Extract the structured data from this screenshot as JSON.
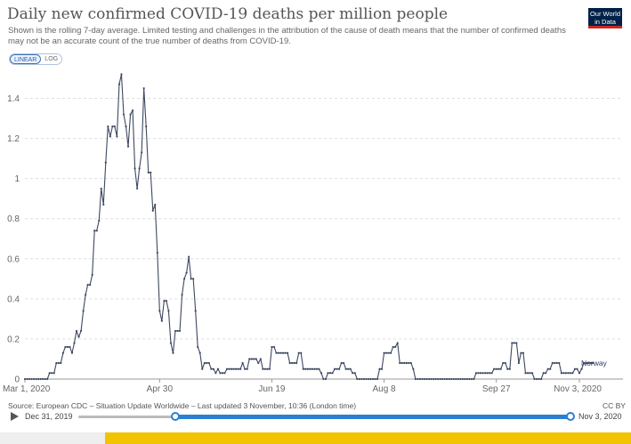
{
  "header": {
    "title": "Daily new confirmed COVID-19 deaths per million people",
    "subtitle": "Shown is the rolling 7-day average. Limited testing and challenges in the attribution of the cause of death means that the number of confirmed deaths may not be an accurate count of the true number of deaths from COVID-19.",
    "logo": [
      "Our World",
      "in Data"
    ]
  },
  "scale_toggle": {
    "linear": "LINEAR",
    "log": "LOG",
    "selected": "linear"
  },
  "footer": {
    "source": "Source: European CDC – Situation Update Worldwide – Last updated 3 November, 10:36 (London time)",
    "license": "CC BY"
  },
  "timeline": {
    "start": "Dec 31, 2019",
    "end": "Nov 3, 2020"
  },
  "colors": {
    "series": "#3d4860",
    "accent": "#2a7fd4",
    "logo_bg": "#002147",
    "logo_red": "#ce261e"
  },
  "chart_data": {
    "type": "line",
    "title": "Daily new confirmed COVID-19 deaths per million people",
    "xlabel": "",
    "ylabel": "",
    "ylim": [
      0,
      1.5
    ],
    "yticks": [
      0,
      0.2,
      0.4,
      0.6,
      0.8,
      1,
      1.2,
      1.4
    ],
    "ytick_labels": [
      "0",
      "0.2",
      "0.4",
      "0.6",
      "0.8",
      "1",
      "1.2",
      "1.4"
    ],
    "x_start": "Mar 1, 2020",
    "x_end": "Nov 3, 2020",
    "xticks": [
      "Mar 1, 2020",
      "Apr 30",
      "Jun 19",
      "Aug 8",
      "Sep 27",
      "Nov 3, 2020"
    ],
    "xtick_days": [
      0,
      60,
      110,
      160,
      210,
      247
    ],
    "grid": "horizontal dashed",
    "series": [
      {
        "name": "Norway",
        "values": [
          0,
          0,
          0,
          0,
          0,
          0,
          0,
          0,
          0,
          0,
          0,
          0.03,
          0.03,
          0.03,
          0.08,
          0.08,
          0.08,
          0.13,
          0.16,
          0.16,
          0.16,
          0.13,
          0.18,
          0.24,
          0.21,
          0.24,
          0.34,
          0.42,
          0.47,
          0.47,
          0.52,
          0.74,
          0.74,
          0.79,
          0.95,
          0.87,
          1.08,
          1.26,
          1.21,
          1.26,
          1.26,
          1.21,
          1.47,
          1.52,
          1.32,
          1.26,
          1.16,
          1.32,
          1.34,
          1.05,
          0.95,
          1.05,
          1.13,
          1.45,
          1.26,
          1.03,
          1.03,
          0.84,
          0.87,
          0.63,
          0.34,
          0.29,
          0.39,
          0.39,
          0.34,
          0.18,
          0.13,
          0.24,
          0.24,
          0.24,
          0.42,
          0.5,
          0.53,
          0.61,
          0.5,
          0.5,
          0.34,
          0.16,
          0.13,
          0.05,
          0.08,
          0.08,
          0.08,
          0.05,
          0.05,
          0.03,
          0.05,
          0.03,
          0.03,
          0.03,
          0.05,
          0.05,
          0.05,
          0.05,
          0.05,
          0.05,
          0.05,
          0.08,
          0.05,
          0.05,
          0.1,
          0.1,
          0.1,
          0.1,
          0.08,
          0.1,
          0.05,
          0.05,
          0.05,
          0.05,
          0.16,
          0.16,
          0.13,
          0.13,
          0.13,
          0.13,
          0.13,
          0.13,
          0.08,
          0.08,
          0.08,
          0.08,
          0.13,
          0.13,
          0.05,
          0.05,
          0.05,
          0.05,
          0.05,
          0.05,
          0.05,
          0.05,
          0.03,
          0.0,
          0.0,
          0.03,
          0.03,
          0.03,
          0.05,
          0.05,
          0.05,
          0.08,
          0.08,
          0.05,
          0.05,
          0.05,
          0.03,
          0.03,
          0.0,
          0.0,
          0.0,
          0.0,
          0.0,
          0.0,
          0.0,
          0.0,
          0.0,
          0.0,
          0.05,
          0.05,
          0.13,
          0.13,
          0.13,
          0.13,
          0.16,
          0.16,
          0.18,
          0.08,
          0.08,
          0.08,
          0.08,
          0.08,
          0.08,
          0.05,
          0.0,
          0.0,
          0.0,
          0.0,
          0.0,
          0.0,
          0.0,
          0.0,
          0.0,
          0.0,
          0.0,
          0.0,
          0.0,
          0.0,
          0.0,
          0.0,
          0.0,
          0.0,
          0.0,
          0.0,
          0.0,
          0.0,
          0.0,
          0.0,
          0.0,
          0.0,
          0.0,
          0.03,
          0.03,
          0.03,
          0.03,
          0.03,
          0.03,
          0.03,
          0.03,
          0.05,
          0.05,
          0.05,
          0.05,
          0.08,
          0.08,
          0.05,
          0.05,
          0.18,
          0.18,
          0.18,
          0.08,
          0.13,
          0.13,
          0.03,
          0.03,
          0.03,
          0.03,
          0.0,
          0.0,
          0.0,
          0.0,
          0.03,
          0.03,
          0.05,
          0.05,
          0.08,
          0.08,
          0.08,
          0.08,
          0.03,
          0.03,
          0.03,
          0.03,
          0.03,
          0.03,
          0.05,
          0.05,
          0.03,
          0.05,
          0.08,
          0.08,
          0.08,
          0.08,
          0.08
        ]
      }
    ]
  }
}
